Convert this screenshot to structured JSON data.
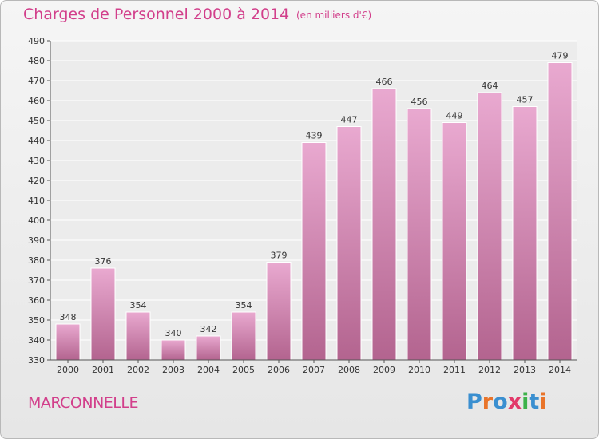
{
  "header": {
    "title": "Charges de Personnel 2000 à 2014",
    "subtitle": "(en milliers d'€)"
  },
  "footer": {
    "place": "MARCONNELLE",
    "logo": "Proxiti"
  },
  "colors": {
    "accent": "#d23f8b",
    "bar_top": "#e9a9d0",
    "bar_bottom": "#b3648f",
    "logo_letters": [
      "#3a8fd0",
      "#e9742a",
      "#3a8fd0",
      "#e23a6a",
      "#3cb24a",
      "#3a8fd0",
      "#e9742a"
    ]
  },
  "chart_data": {
    "type": "bar",
    "title": "Charges de Personnel 2000 à 2014",
    "xlabel": "",
    "ylabel": "",
    "categories": [
      "2000",
      "2001",
      "2002",
      "2003",
      "2004",
      "2005",
      "2006",
      "2007",
      "2008",
      "2009",
      "2010",
      "2011",
      "2012",
      "2013",
      "2014"
    ],
    "values": [
      348,
      376,
      354,
      340,
      342,
      354,
      379,
      439,
      447,
      466,
      456,
      449,
      464,
      457,
      479
    ],
    "ylim": [
      330,
      490
    ],
    "yticks": [
      330,
      340,
      350,
      360,
      370,
      380,
      390,
      400,
      410,
      420,
      430,
      440,
      450,
      460,
      470,
      480,
      490
    ],
    "grid": true,
    "legend": "none"
  }
}
